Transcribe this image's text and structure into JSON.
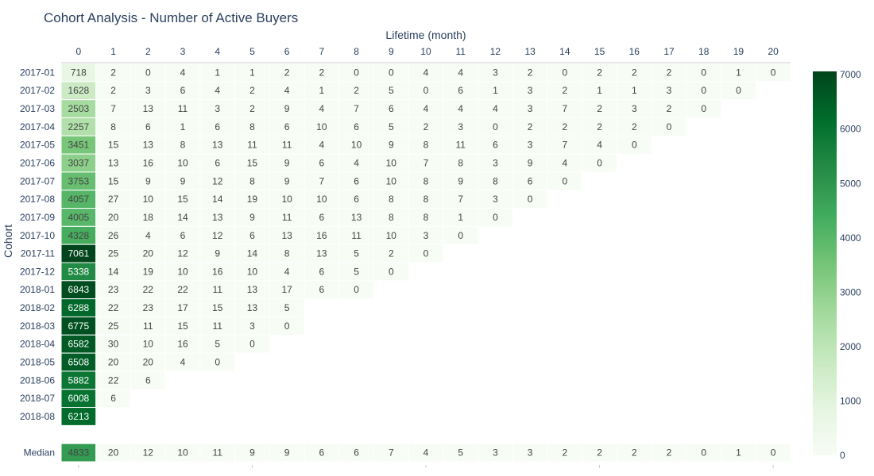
{
  "chart_data": {
    "type": "heatmap",
    "title": "Cohort Analysis - Number of Active Buyers",
    "xlabel": "Lifetime (month)",
    "ylabel": "Cohort",
    "x": [
      "0",
      "1",
      "2",
      "3",
      "4",
      "5",
      "6",
      "7",
      "8",
      "9",
      "10",
      "11",
      "12",
      "13",
      "14",
      "15",
      "16",
      "17",
      "18",
      "19",
      "20"
    ],
    "y": [
      "2017-01",
      "2017-02",
      "2017-03",
      "2017-04",
      "2017-05",
      "2017-06",
      "2017-07",
      "2017-08",
      "2017-09",
      "2017-10",
      "2017-11",
      "2017-12",
      "2018-01",
      "2018-02",
      "2018-03",
      "2018-04",
      "2018-05",
      "2018-06",
      "2018-07",
      "2018-08",
      "",
      "Median"
    ],
    "z": [
      [
        718,
        2,
        0,
        4,
        1,
        1,
        2,
        2,
        0,
        0,
        4,
        4,
        3,
        2,
        0,
        2,
        2,
        2,
        0,
        1,
        0
      ],
      [
        1628,
        2,
        3,
        6,
        4,
        2,
        4,
        1,
        2,
        5,
        0,
        6,
        1,
        3,
        2,
        1,
        1,
        3,
        0,
        0
      ],
      [
        2503,
        7,
        13,
        11,
        3,
        2,
        9,
        4,
        7,
        6,
        4,
        4,
        4,
        3,
        7,
        2,
        3,
        2,
        0
      ],
      [
        2257,
        8,
        6,
        1,
        6,
        8,
        6,
        10,
        6,
        5,
        2,
        3,
        0,
        2,
        2,
        2,
        2,
        0
      ],
      [
        3451,
        15,
        13,
        8,
        13,
        11,
        11,
        4,
        10,
        9,
        8,
        11,
        6,
        3,
        7,
        4,
        0
      ],
      [
        3037,
        13,
        16,
        10,
        6,
        15,
        9,
        6,
        4,
        10,
        7,
        8,
        3,
        9,
        4,
        0
      ],
      [
        3753,
        15,
        9,
        9,
        12,
        8,
        9,
        7,
        6,
        10,
        8,
        9,
        8,
        6,
        0
      ],
      [
        4057,
        27,
        10,
        15,
        14,
        19,
        10,
        10,
        6,
        8,
        8,
        7,
        3,
        0
      ],
      [
        4005,
        20,
        18,
        14,
        13,
        9,
        11,
        6,
        13,
        8,
        8,
        1,
        0
      ],
      [
        4328,
        26,
        4,
        6,
        12,
        6,
        13,
        16,
        11,
        10,
        3,
        0
      ],
      [
        7061,
        25,
        20,
        12,
        9,
        14,
        8,
        13,
        5,
        2,
        0
      ],
      [
        5338,
        14,
        19,
        10,
        16,
        10,
        4,
        6,
        5,
        0
      ],
      [
        6843,
        23,
        22,
        22,
        11,
        13,
        17,
        6,
        0
      ],
      [
        6288,
        22,
        23,
        17,
        15,
        13,
        5
      ],
      [
        6775,
        25,
        11,
        15,
        11,
        3,
        0
      ],
      [
        6582,
        30,
        10,
        16,
        5,
        0
      ],
      [
        6508,
        20,
        20,
        4,
        0
      ],
      [
        5882,
        22,
        6
      ],
      [
        6008,
        6
      ],
      [
        6213
      ],
      [],
      [
        4833,
        20,
        12,
        10,
        11,
        9,
        9,
        6,
        6,
        7,
        4,
        5,
        3,
        3,
        2,
        2,
        2,
        2,
        0,
        1,
        0
      ]
    ],
    "colorscale": "Greens",
    "zmin": 0,
    "zmax": 7061,
    "colorbar_ticks": [
      0,
      1000,
      2000,
      3000,
      4000,
      5000,
      6000,
      7000
    ],
    "colors": {
      "low": "#f7fcf5",
      "high": "#00441b",
      "text_dark": "#444444",
      "text_light": "#ffffff",
      "font": "#2a3f5f"
    }
  }
}
